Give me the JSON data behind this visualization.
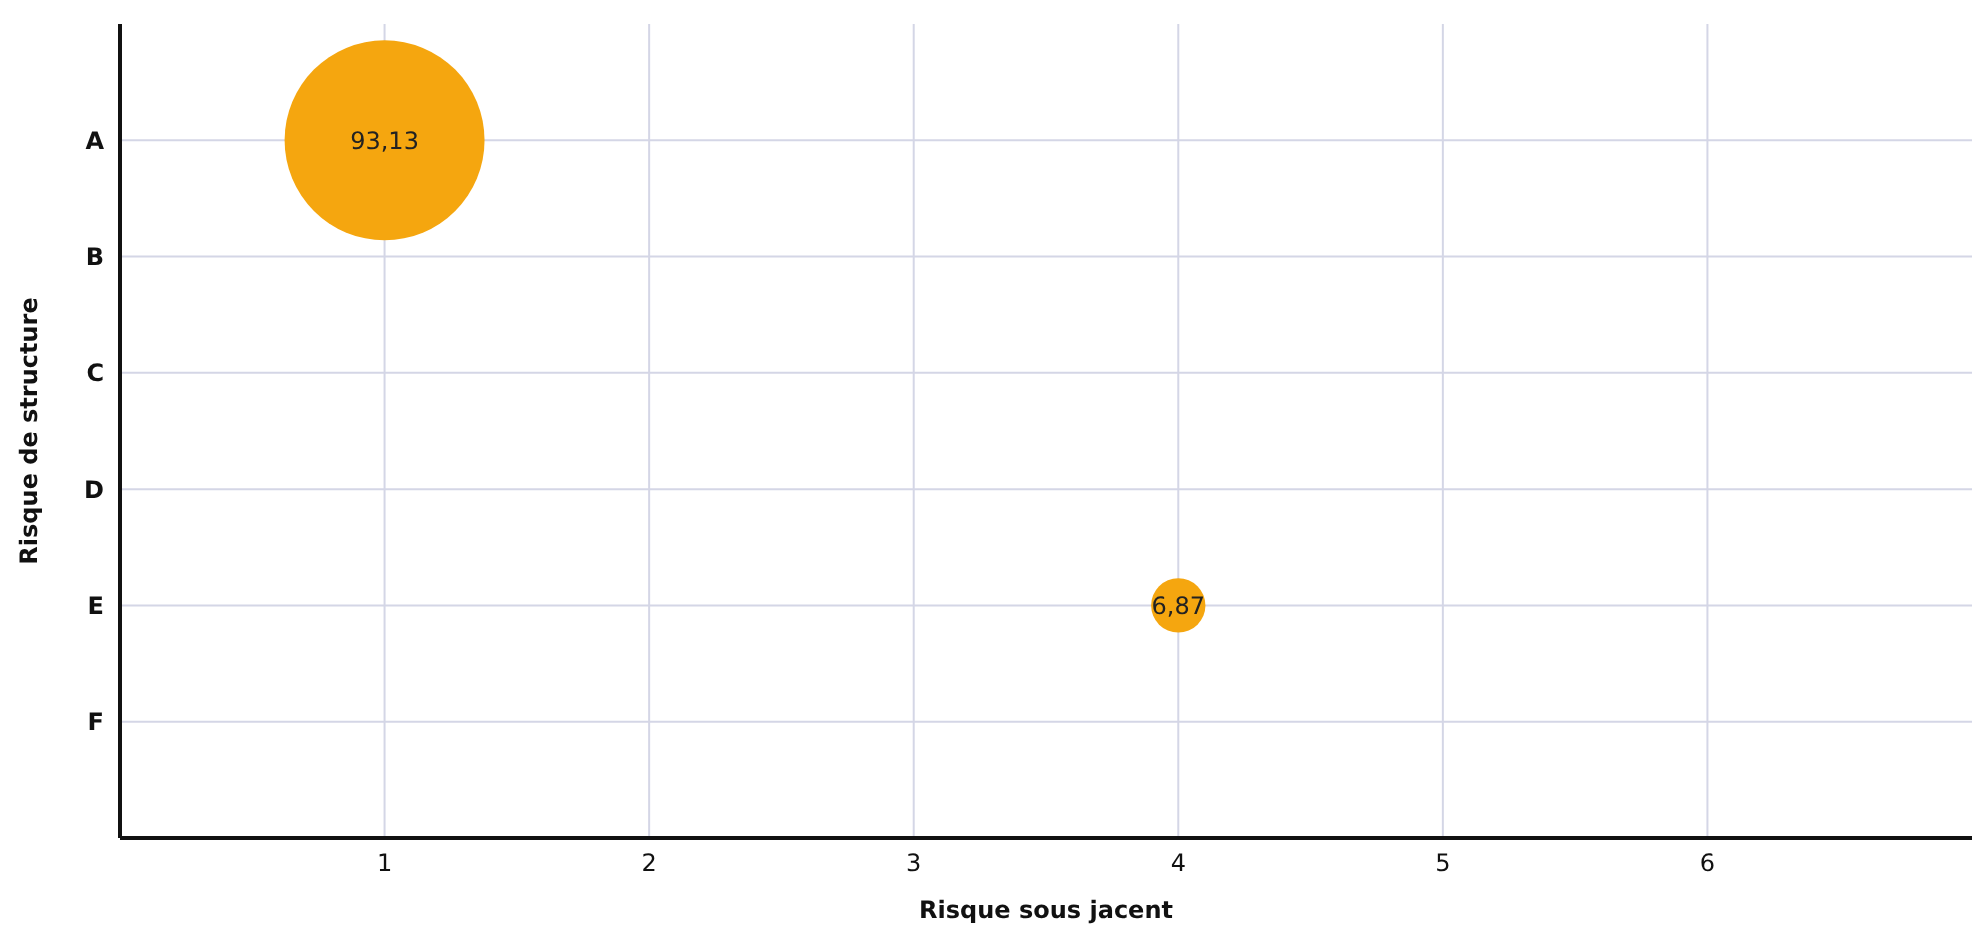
{
  "chart_data": {
    "type": "bubble",
    "orientation": "horizontal",
    "xlabel": "Risque sous jacent",
    "ylabel": "Risque de structure",
    "categories": [
      "A",
      "B",
      "C",
      "D",
      "E",
      "F"
    ],
    "values": [
      1,
      null,
      null,
      null,
      4,
      null
    ],
    "sizes": [
      93.13,
      null,
      null,
      null,
      6.87,
      null
    ],
    "value_labels": [
      "93,13",
      null,
      null,
      null,
      "6,87",
      null
    ],
    "color": "#f5a60f",
    "xlim": [
      0,
      7
    ],
    "xticks": [
      1,
      2,
      3,
      4,
      5,
      6
    ],
    "grid": true
  }
}
